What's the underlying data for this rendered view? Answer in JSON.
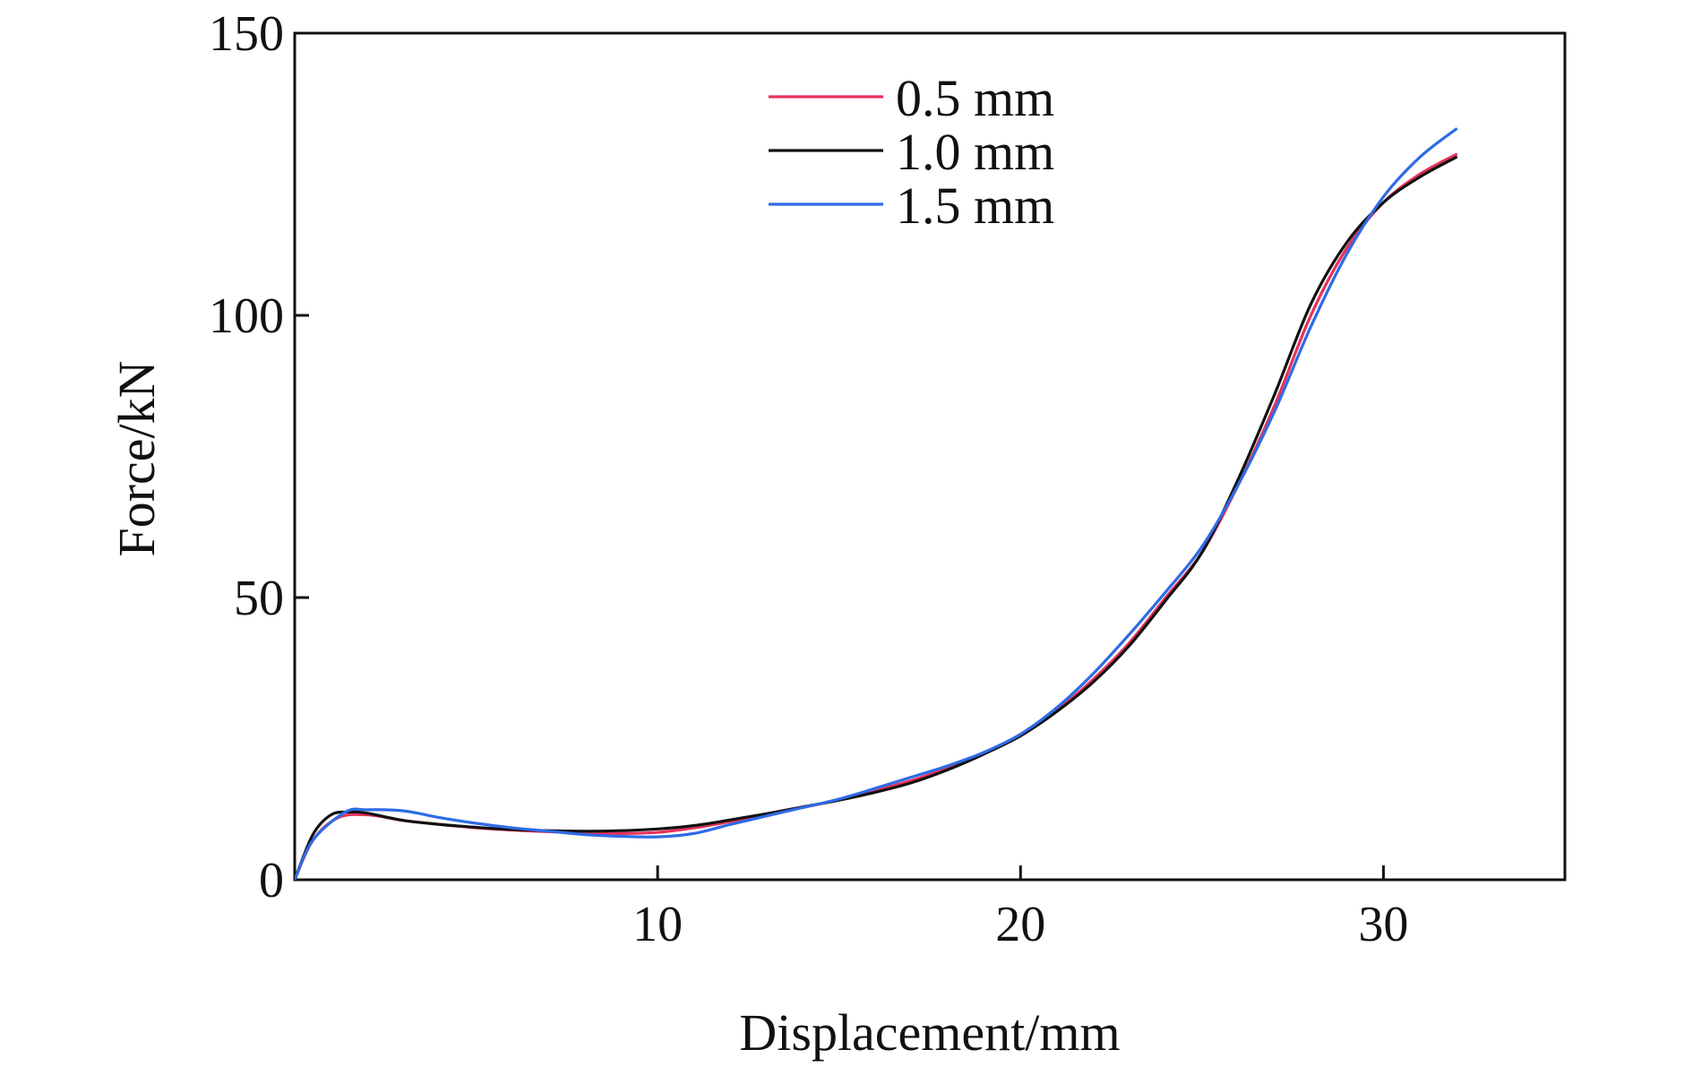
{
  "chart_data": {
    "type": "line",
    "title": "",
    "xlabel": "Displacement/mm",
    "ylabel": "Force/kN",
    "xlim": [
      0,
      35
    ],
    "ylim": [
      0,
      150
    ],
    "xticks": [
      10,
      20,
      30
    ],
    "yticks": [
      0,
      50,
      100,
      150
    ],
    "grid": false,
    "legend_position": "top-center",
    "series": [
      {
        "name": "0.5 mm",
        "color": "#e8315a",
        "points": [
          [
            0,
            0
          ],
          [
            0.5,
            7
          ],
          [
            1.2,
            11
          ],
          [
            2,
            11.5
          ],
          [
            3,
            10.5
          ],
          [
            4,
            9.8
          ],
          [
            5,
            9.2
          ],
          [
            6,
            8.8
          ],
          [
            7,
            8.5
          ],
          [
            8,
            8.3
          ],
          [
            9,
            8.2
          ],
          [
            10,
            8.4
          ],
          [
            11,
            9.2
          ],
          [
            12,
            10.3
          ],
          [
            13,
            11.5
          ],
          [
            14,
            12.8
          ],
          [
            15,
            14.2
          ],
          [
            16,
            15.8
          ],
          [
            17,
            17.6
          ],
          [
            18,
            19.8
          ],
          [
            19,
            22.5
          ],
          [
            20,
            25.5
          ],
          [
            21,
            30
          ],
          [
            22,
            35.5
          ],
          [
            23,
            42
          ],
          [
            24,
            50
          ],
          [
            25,
            58
          ],
          [
            26,
            70
          ],
          [
            27,
            84
          ],
          [
            28,
            100
          ],
          [
            29,
            112
          ],
          [
            30,
            120
          ],
          [
            31,
            125
          ],
          [
            32,
            128.5
          ]
        ]
      },
      {
        "name": "1.0 mm",
        "color": "#111111",
        "points": [
          [
            0,
            0
          ],
          [
            0.5,
            8
          ],
          [
            1,
            11.5
          ],
          [
            1.5,
            12
          ],
          [
            2,
            11.8
          ],
          [
            3,
            10.5
          ],
          [
            4,
            9.8
          ],
          [
            5,
            9.3
          ],
          [
            6,
            8.9
          ],
          [
            7,
            8.7
          ],
          [
            8,
            8.6
          ],
          [
            9,
            8.7
          ],
          [
            10,
            9
          ],
          [
            11,
            9.6
          ],
          [
            12,
            10.6
          ],
          [
            13,
            11.7
          ],
          [
            14,
            12.9
          ],
          [
            15,
            14.1
          ],
          [
            16,
            15.5
          ],
          [
            17,
            17.2
          ],
          [
            18,
            19.5
          ],
          [
            19,
            22.3
          ],
          [
            20,
            25.5
          ],
          [
            21,
            29.8
          ],
          [
            22,
            35
          ],
          [
            23,
            41.5
          ],
          [
            24,
            49.5
          ],
          [
            25,
            58
          ],
          [
            26,
            71
          ],
          [
            27,
            86
          ],
          [
            28,
            102
          ],
          [
            29,
            113
          ],
          [
            30,
            120
          ],
          [
            31,
            124.5
          ],
          [
            32,
            128
          ]
        ]
      },
      {
        "name": "1.5 mm",
        "color": "#2e6be6",
        "points": [
          [
            0,
            0
          ],
          [
            0.5,
            7
          ],
          [
            1.4,
            12
          ],
          [
            2,
            12.4
          ],
          [
            3,
            12.2
          ],
          [
            4,
            11
          ],
          [
            5,
            10
          ],
          [
            6,
            9.2
          ],
          [
            7,
            8.6
          ],
          [
            8,
            8
          ],
          [
            9,
            7.7
          ],
          [
            10,
            7.6
          ],
          [
            11,
            8.2
          ],
          [
            12,
            9.8
          ],
          [
            13,
            11.3
          ],
          [
            14,
            12.8
          ],
          [
            15,
            14.3
          ],
          [
            16,
            16.2
          ],
          [
            17,
            18.2
          ],
          [
            18,
            20.2
          ],
          [
            19,
            22.6
          ],
          [
            20,
            25.8
          ],
          [
            21,
            30.5
          ],
          [
            22,
            36.5
          ],
          [
            23,
            43.5
          ],
          [
            24,
            51
          ],
          [
            25,
            59
          ],
          [
            26,
            70
          ],
          [
            27,
            83
          ],
          [
            28,
            98
          ],
          [
            29,
            111
          ],
          [
            30,
            121
          ],
          [
            31,
            128
          ],
          [
            32,
            133
          ]
        ]
      }
    ]
  }
}
